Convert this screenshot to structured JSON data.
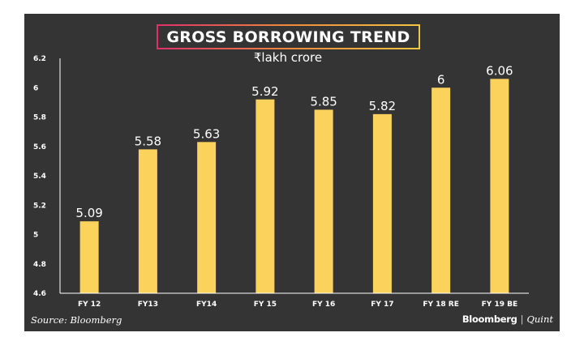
{
  "chart_data": {
    "type": "bar",
    "title": "GROSS BORROWING TREND",
    "subtitle": "₹lakh crore",
    "categories": [
      "FY 12",
      "FY13",
      "FY14",
      "FY 15",
      "FY 16",
      "FY 17",
      "FY 18 RE",
      "FY 19 BE"
    ],
    "values": [
      5.09,
      5.58,
      5.63,
      5.92,
      5.85,
      5.82,
      6,
      6.06
    ],
    "data_labels": [
      "5.09",
      "5.58",
      "5.63",
      "5.92",
      "5.85",
      "5.82",
      "6",
      "6.06"
    ],
    "ylim": [
      4.6,
      6.2
    ],
    "yticks": [
      "4.6",
      "4.8",
      "5",
      "5.2",
      "5.4",
      "5.6",
      "5.8",
      "6",
      "6.2"
    ],
    "xlabel": "",
    "ylabel": "",
    "grid": false,
    "legend": "none",
    "colors": {
      "bar": "#fbd25c",
      "background": "#343434",
      "text": "#ffffff",
      "axis": "#ffffff"
    }
  },
  "footer": {
    "source": "Source: Bloomberg",
    "brand_primary": "Bloomberg",
    "brand_separator": "|",
    "brand_secondary": "Quint"
  }
}
